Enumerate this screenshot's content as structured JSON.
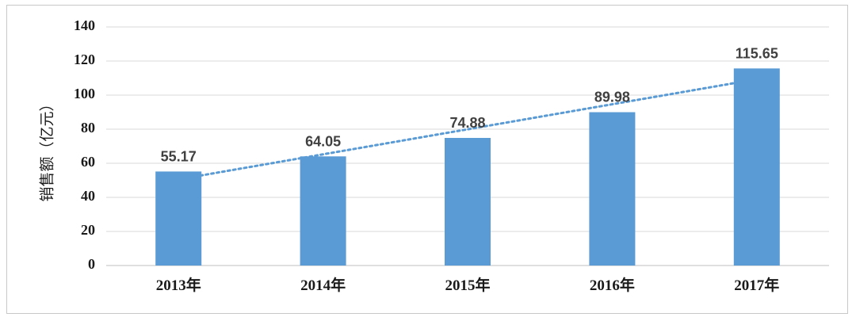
{
  "chart_data": {
    "type": "bar",
    "categories": [
      "2013年",
      "2014年",
      "2015年",
      "2016年",
      "2017年"
    ],
    "values": [
      55.17,
      64.05,
      74.88,
      89.98,
      115.65
    ],
    "data_labels": [
      "55.17",
      "64.05",
      "74.88",
      "89.98",
      "115.65"
    ],
    "ylabel": "销售额（亿元）",
    "ylim": [
      0,
      140
    ],
    "yticks": [
      0,
      20,
      40,
      60,
      80,
      100,
      120,
      140
    ],
    "grid": true,
    "trendline": {
      "type": "linear",
      "style": "dotted"
    },
    "colors": {
      "bar": "#5b9bd5",
      "trendline": "#5b9bd5",
      "grid": "#d9d9d9"
    }
  }
}
